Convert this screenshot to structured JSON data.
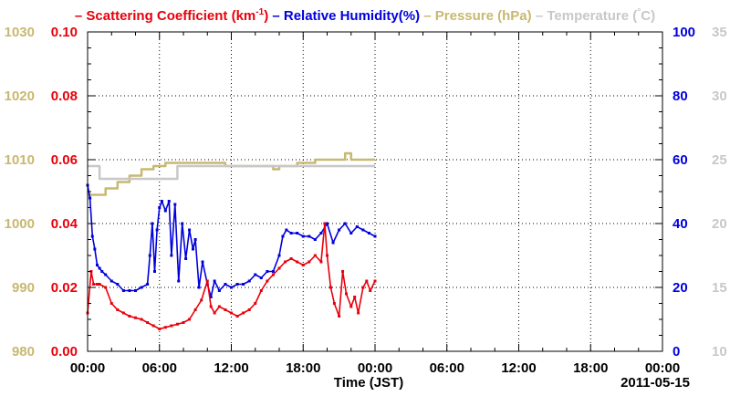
{
  "chart_data": {
    "type": "line",
    "legend": [
      {
        "label": "Scattering Coefficient (km",
        "sup": "-1",
        "suffix": ")",
        "color": "#e8000b"
      },
      {
        "label": "Relative Humidity(%)",
        "color": "#0000dd"
      },
      {
        "label": "Pressure (hPa)",
        "color": "#c8b870"
      },
      {
        "label": "Temperature (",
        "sup": "°",
        "suffix": "C)",
        "color": "#c8c8c8"
      }
    ],
    "xlabel": "Time (JST)",
    "date_label": "2011-05-15",
    "x_ticks": [
      "00:00",
      "06:00",
      "12:00",
      "18:00",
      "00:00",
      "06:00",
      "12:00",
      "18:00",
      "00:00"
    ],
    "x_range_hours": [
      0,
      48
    ],
    "axes": {
      "scattering": {
        "range": [
          0,
          0.1
        ],
        "ticks": [
          "0.00",
          "0.02",
          "0.04",
          "0.06",
          "0.08",
          "0.10"
        ],
        "color": "#e8000b"
      },
      "pressure": {
        "range": [
          980,
          1030
        ],
        "ticks": [
          "980",
          "990",
          "1000",
          "1010",
          "1020",
          "1030"
        ],
        "color": "#c8b870"
      },
      "humidity": {
        "range": [
          0,
          100
        ],
        "ticks": [
          "0",
          "20",
          "40",
          "60",
          "80",
          "100"
        ],
        "color": "#0000dd"
      },
      "temperature": {
        "range": [
          10,
          35
        ],
        "ticks": [
          "10",
          "15",
          "20",
          "25",
          "30",
          "35"
        ],
        "color": "#c8c8c8"
      }
    },
    "grid": true,
    "series": [
      {
        "name": "Scattering Coefficient",
        "axis": "scattering",
        "color": "#e8000b",
        "x": [
          0,
          0.3,
          0.5,
          0.8,
          1,
          1.5,
          2,
          2.5,
          3,
          3.5,
          4,
          4.5,
          5,
          5.5,
          6,
          6.5,
          7,
          7.5,
          8,
          8.5,
          9,
          9.5,
          10,
          10.3,
          10.6,
          11,
          11.5,
          12,
          12.5,
          13,
          13.5,
          14,
          14.5,
          15,
          15.5,
          16,
          16.5,
          17,
          17.5,
          18,
          18.5,
          19,
          19.5,
          19.8,
          20,
          20.3,
          20.6,
          21,
          21.3,
          21.6,
          22,
          22.3,
          22.6,
          23,
          23.3,
          23.6,
          24
        ],
        "y": [
          0.012,
          0.025,
          0.021,
          0.021,
          0.021,
          0.02,
          0.015,
          0.013,
          0.012,
          0.011,
          0.0105,
          0.01,
          0.009,
          0.008,
          0.007,
          0.0075,
          0.008,
          0.0085,
          0.009,
          0.01,
          0.013,
          0.016,
          0.022,
          0.014,
          0.012,
          0.014,
          0.013,
          0.012,
          0.011,
          0.012,
          0.013,
          0.015,
          0.019,
          0.022,
          0.024,
          0.026,
          0.028,
          0.029,
          0.028,
          0.027,
          0.028,
          0.03,
          0.028,
          0.04,
          0.03,
          0.02,
          0.015,
          0.011,
          0.025,
          0.018,
          0.014,
          0.017,
          0.012,
          0.02,
          0.022,
          0.019,
          0.022
        ]
      },
      {
        "name": "Relative Humidity",
        "axis": "humidity",
        "color": "#0000dd",
        "x": [
          0,
          0.2,
          0.4,
          0.6,
          0.8,
          1,
          1.2,
          1.5,
          2,
          2.5,
          3,
          3.5,
          4,
          4.5,
          5,
          5.2,
          5.4,
          5.6,
          5.8,
          6,
          6.2,
          6.5,
          6.8,
          7,
          7.3,
          7.6,
          7.9,
          8.2,
          8.5,
          8.8,
          9,
          9.3,
          9.6,
          10,
          10.3,
          10.6,
          11,
          11.5,
          12,
          12.5,
          13,
          13.5,
          14,
          14.5,
          15,
          15.5,
          16,
          16.3,
          16.6,
          17,
          17.5,
          18,
          18.5,
          19,
          19.5,
          20,
          20.5,
          21,
          21.5,
          22,
          22.5,
          23,
          23.5,
          24
        ],
        "y": [
          52,
          48,
          36,
          32,
          27,
          26,
          25,
          24,
          22,
          21,
          19,
          19,
          19,
          20,
          21,
          30,
          40,
          25,
          38,
          45,
          47,
          44,
          47,
          30,
          46,
          22,
          40,
          29,
          38,
          32,
          35,
          20,
          28,
          21,
          17,
          22,
          19,
          21,
          20,
          21,
          21,
          22,
          24,
          23,
          25,
          25,
          30,
          36,
          38,
          37,
          37,
          36,
          36,
          35,
          37,
          40,
          34,
          38,
          40,
          37,
          39,
          38,
          37,
          36
        ]
      },
      {
        "name": "Pressure",
        "axis": "pressure",
        "color": "#c8b870",
        "x": [
          0,
          0.8,
          1.5,
          2.5,
          3.5,
          4.5,
          5.5,
          6.5,
          7.5,
          8.5,
          9.5,
          10.5,
          11.5,
          12.5,
          13.5,
          14.5,
          15.5,
          16,
          16.5,
          17,
          17.5,
          18,
          19,
          20,
          21,
          21.5,
          22,
          23,
          24
        ],
        "y": [
          1004.5,
          1004.5,
          1005.5,
          1006.5,
          1007.5,
          1008.5,
          1009,
          1009.5,
          1009.5,
          1009.5,
          1009.5,
          1009.5,
          1009,
          1009,
          1009,
          1009,
          1008.5,
          1009,
          1009,
          1009,
          1009.5,
          1009.5,
          1010,
          1010,
          1010,
          1011,
          1010,
          1010,
          1010
        ]
      },
      {
        "name": "Temperature",
        "axis": "temperature",
        "color": "#c8c8c8",
        "x": [
          0,
          1,
          2,
          3,
          4,
          5,
          6,
          7,
          7.5,
          8,
          9,
          10,
          11,
          12,
          13,
          14,
          15,
          16,
          17,
          18,
          19,
          20,
          21,
          22,
          23,
          24
        ],
        "y": [
          24.5,
          23.5,
          23.5,
          23.5,
          23.5,
          23.5,
          23.5,
          23.5,
          24.5,
          24.5,
          24.5,
          24.5,
          24.5,
          24.5,
          24.5,
          24.5,
          24.5,
          24.5,
          24.5,
          24.5,
          24.5,
          24.5,
          24.5,
          24.5,
          24.5,
          24.5
        ]
      }
    ]
  }
}
